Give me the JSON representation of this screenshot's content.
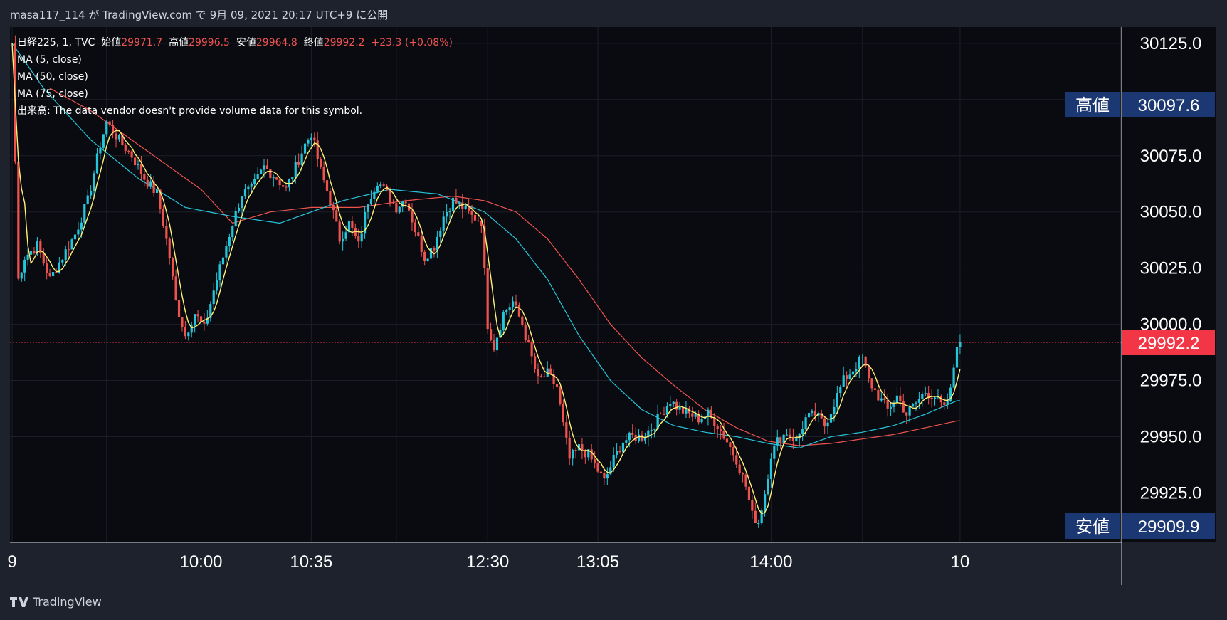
{
  "header": {
    "author": "masa117_114",
    "text": "masa117_114 が TradingView.com で 9月 09, 2021 20:17 UTC+9 に公開"
  },
  "legend": {
    "symbol": "日経225, 1, TVC",
    "open_label": "始値",
    "open": "29971.7",
    "high_label": "高値",
    "high": "29996.5",
    "low_label": "安値",
    "low": "29964.8",
    "close_label": "終値",
    "close": "29992.2",
    "change": "+23.3 (+0.08%)",
    "ma5": "MA (5, close)",
    "ma50": "MA (50, close)",
    "ma75": "MA (75, close)",
    "volume_note": "出来高: The data vendor doesn't provide volume data for this symbol."
  },
  "footer": {
    "brand": "TradingView"
  },
  "colors": {
    "background": "#0a0b10",
    "up": "#26c6da",
    "down": "#ef5350",
    "ma5": "#fff176",
    "ma50": "#26c6da",
    "ma75": "#ef5350",
    "tag_blue": "#1c3872",
    "tag_red": "#f23645"
  },
  "chart_data": {
    "type": "candlestick",
    "symbol": "日経225",
    "interval": "1",
    "y_ticks": [
      30125.0,
      30075.0,
      30050.0,
      30025.0,
      30000.0,
      29975.0,
      29950.0,
      29925.0
    ],
    "ylim": [
      29905,
      30133
    ],
    "x_ticks": [
      "9",
      "10:00",
      "10:35",
      "12:30",
      "13:05",
      "14:00",
      "10"
    ],
    "x_ticks_index": [
      0,
      60,
      95,
      151,
      186,
      241,
      301
    ],
    "high_marker": {
      "label": "高値",
      "value": "30097.6"
    },
    "low_marker": {
      "label": "安値",
      "value": "29909.9"
    },
    "last_price": "29992.2",
    "closes_anchor": [
      [
        0,
        30125
      ],
      [
        2,
        30020
      ],
      [
        4,
        30030
      ],
      [
        8,
        30035
      ],
      [
        12,
        30020
      ],
      [
        16,
        30030
      ],
      [
        20,
        30040
      ],
      [
        24,
        30055
      ],
      [
        28,
        30080
      ],
      [
        30,
        30090
      ],
      [
        34,
        30082
      ],
      [
        38,
        30075
      ],
      [
        42,
        30065
      ],
      [
        46,
        30058
      ],
      [
        48,
        30045
      ],
      [
        50,
        30030
      ],
      [
        52,
        30010
      ],
      [
        55,
        29995
      ],
      [
        58,
        30005
      ],
      [
        61,
        29998
      ],
      [
        64,
        30015
      ],
      [
        67,
        30030
      ],
      [
        70,
        30045
      ],
      [
        73,
        30058
      ],
      [
        76,
        30060
      ],
      [
        80,
        30070
      ],
      [
        84,
        30065
      ],
      [
        87,
        30060
      ],
      [
        90,
        30070
      ],
      [
        93,
        30080
      ],
      [
        95,
        30085
      ],
      [
        98,
        30068
      ],
      [
        101,
        30055
      ],
      [
        104,
        30038
      ],
      [
        107,
        30045
      ],
      [
        110,
        30035
      ],
      [
        113,
        30055
      ],
      [
        116,
        30064
      ],
      [
        119,
        30058
      ],
      [
        122,
        30052
      ],
      [
        125,
        30056
      ],
      [
        128,
        30042
      ],
      [
        131,
        30030
      ],
      [
        134,
        30035
      ],
      [
        137,
        30048
      ],
      [
        140,
        30055
      ],
      [
        143,
        30052
      ],
      [
        146,
        30048
      ],
      [
        149,
        30046
      ],
      [
        151,
        30000
      ],
      [
        153,
        29990
      ],
      [
        156,
        30005
      ],
      [
        159,
        30010
      ],
      [
        162,
        30000
      ],
      [
        165,
        29985
      ],
      [
        167,
        29975
      ],
      [
        170,
        29978
      ],
      [
        173,
        29972
      ],
      [
        175,
        29955
      ],
      [
        177,
        29940
      ],
      [
        180,
        29945
      ],
      [
        183,
        29942
      ],
      [
        186,
        29935
      ],
      [
        188,
        29930
      ],
      [
        191,
        29940
      ],
      [
        194,
        29948
      ],
      [
        197,
        29950
      ],
      [
        200,
        29950
      ],
      [
        203,
        29954
      ],
      [
        206,
        29960
      ],
      [
        209,
        29966
      ],
      [
        212,
        29962
      ],
      [
        215,
        29960
      ],
      [
        218,
        29958
      ],
      [
        221,
        29960
      ],
      [
        224,
        29955
      ],
      [
        227,
        29948
      ],
      [
        230,
        29940
      ],
      [
        233,
        29928
      ],
      [
        235,
        29915
      ],
      [
        237,
        29912
      ],
      [
        239,
        29925
      ],
      [
        241,
        29942
      ],
      [
        243,
        29948
      ],
      [
        246,
        29952
      ],
      [
        249,
        29948
      ],
      [
        252,
        29958
      ],
      [
        255,
        29960
      ],
      [
        258,
        29955
      ],
      [
        261,
        29965
      ],
      [
        264,
        29975
      ],
      [
        267,
        29980
      ],
      [
        270,
        29985
      ],
      [
        272,
        29975
      ],
      [
        275,
        29968
      ],
      [
        278,
        29962
      ],
      [
        281,
        29968
      ],
      [
        284,
        29960
      ],
      [
        287,
        29965
      ],
      [
        290,
        29970
      ],
      [
        293,
        29968
      ],
      [
        296,
        29962
      ],
      [
        298,
        29970
      ],
      [
        300,
        29992
      ]
    ],
    "ma50_anchor": [
      [
        0,
        30125
      ],
      [
        10,
        30105
      ],
      [
        25,
        30082
      ],
      [
        40,
        30065
      ],
      [
        55,
        30052
      ],
      [
        70,
        30048
      ],
      [
        85,
        30045
      ],
      [
        95,
        30050
      ],
      [
        105,
        30055
      ],
      [
        120,
        30060
      ],
      [
        135,
        30058
      ],
      [
        150,
        30050
      ],
      [
        160,
        30038
      ],
      [
        170,
        30020
      ],
      [
        180,
        29995
      ],
      [
        190,
        29975
      ],
      [
        200,
        29962
      ],
      [
        210,
        29955
      ],
      [
        220,
        29952
      ],
      [
        230,
        29950
      ],
      [
        240,
        29947
      ],
      [
        250,
        29945
      ],
      [
        260,
        29950
      ],
      [
        270,
        29952
      ],
      [
        280,
        29955
      ],
      [
        290,
        29960
      ],
      [
        300,
        29966
      ]
    ],
    "ma75_anchor": [
      [
        12,
        30105
      ],
      [
        25,
        30095
      ],
      [
        38,
        30082
      ],
      [
        50,
        30070
      ],
      [
        60,
        30060
      ],
      [
        70,
        30045
      ],
      [
        82,
        30050
      ],
      [
        95,
        30052
      ],
      [
        110,
        30052
      ],
      [
        125,
        30055
      ],
      [
        140,
        30057
      ],
      [
        150,
        30055
      ],
      [
        160,
        30050
      ],
      [
        170,
        30038
      ],
      [
        180,
        30020
      ],
      [
        190,
        30000
      ],
      [
        200,
        29985
      ],
      [
        210,
        29973
      ],
      [
        220,
        29962
      ],
      [
        230,
        29954
      ],
      [
        240,
        29948
      ],
      [
        250,
        29946
      ],
      [
        260,
        29947
      ],
      [
        270,
        29949
      ],
      [
        280,
        29951
      ],
      [
        290,
        29954
      ],
      [
        300,
        29957
      ]
    ]
  }
}
